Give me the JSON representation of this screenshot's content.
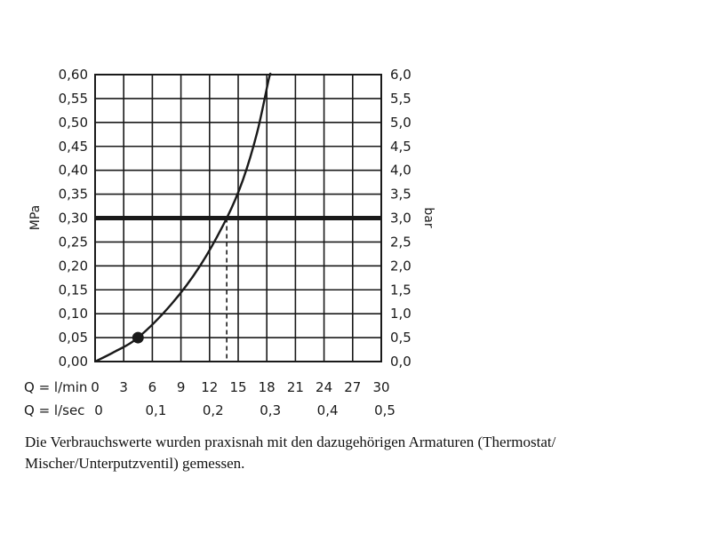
{
  "chart_data": {
    "type": "line",
    "y_left": {
      "label": "MPa",
      "ticks": [
        "0,00",
        "0,05",
        "0,10",
        "0,15",
        "0,20",
        "0,25",
        "0,30",
        "0,35",
        "0,40",
        "0,45",
        "0,50",
        "0,55",
        "0,60"
      ],
      "range": [
        0,
        0.6
      ]
    },
    "y_right": {
      "label": "bar",
      "ticks": [
        "0,0",
        "0,5",
        "1,0",
        "1,5",
        "2,0",
        "2,5",
        "3,0",
        "3,5",
        "4,0",
        "4,5",
        "5,0",
        "5,5",
        "6,0"
      ],
      "range": [
        0,
        6.0
      ]
    },
    "x_lmin": {
      "label": "Q = l/min",
      "ticks": [
        "0",
        "3",
        "6",
        "9",
        "12",
        "15",
        "18",
        "21",
        "24",
        "27",
        "30"
      ],
      "range": [
        0,
        30
      ]
    },
    "x_lsec": {
      "label": "Q = l/sec",
      "ticks": [
        {
          "value": 0,
          "text": "0"
        },
        {
          "value": 0.1,
          "text": "0,1"
        },
        {
          "value": 0.2,
          "text": "0,2"
        },
        {
          "value": 0.3,
          "text": "0,3"
        },
        {
          "value": 0.4,
          "text": "0,4"
        },
        {
          "value": 0.5,
          "text": "0,5"
        }
      ]
    },
    "grid": true,
    "series": [
      {
        "points": [
          {
            "x": 0,
            "y": 0.0
          },
          {
            "x": 2,
            "y": 0.02
          },
          {
            "x": 4.5,
            "y": 0.05
          },
          {
            "x": 8,
            "y": 0.12
          },
          {
            "x": 11,
            "y": 0.2
          },
          {
            "x": 13.8,
            "y": 0.3
          },
          {
            "x": 15.5,
            "y": 0.38
          },
          {
            "x": 17,
            "y": 0.48
          },
          {
            "x": 18.2,
            "y": 0.59
          },
          {
            "x": 18.4,
            "y": 0.6
          }
        ]
      }
    ],
    "reference_line_y": 0.3,
    "reference_drop_x": 13.8,
    "marker": {
      "x": 4.5,
      "y": 0.05
    }
  },
  "caption": "Die Verbrauchswerte wurden praxisnah mit den dazugehörigen Armaturen (Thermostat/ Mischer/Unterputzventil) gemessen."
}
